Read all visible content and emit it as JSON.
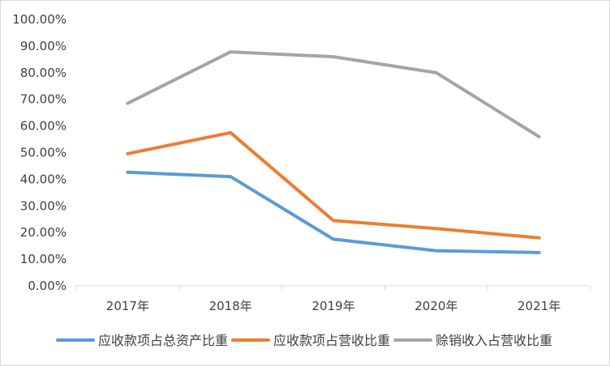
{
  "chart_data": {
    "type": "line",
    "title": "",
    "xlabel": "",
    "ylabel": "",
    "categories": [
      "2017年",
      "2018年",
      "2019年",
      "2020年",
      "2021年"
    ],
    "ylim": [
      0,
      100
    ],
    "y_ticks": [
      "0.00%",
      "10.00%",
      "20.00%",
      "30.00%",
      "40.00%",
      "50.00%",
      "60.00%",
      "70.00%",
      "80.00%",
      "90.00%",
      "100.00%"
    ],
    "grid": false,
    "legend_position": "bottom",
    "series": [
      {
        "name": "应收款项占总资产比重",
        "color": "#5b9bd5",
        "values": [
          42.6,
          41.0,
          17.5,
          13.2,
          12.5
        ]
      },
      {
        "name": "应收款项占营收比重",
        "color": "#ed7d31",
        "values": [
          49.6,
          57.5,
          24.5,
          21.5,
          18.0
        ]
      },
      {
        "name": "赊销收入占营收比重",
        "color": "#a5a5a5",
        "values": [
          68.5,
          87.8,
          86.0,
          80.0,
          56.0
        ]
      }
    ]
  }
}
